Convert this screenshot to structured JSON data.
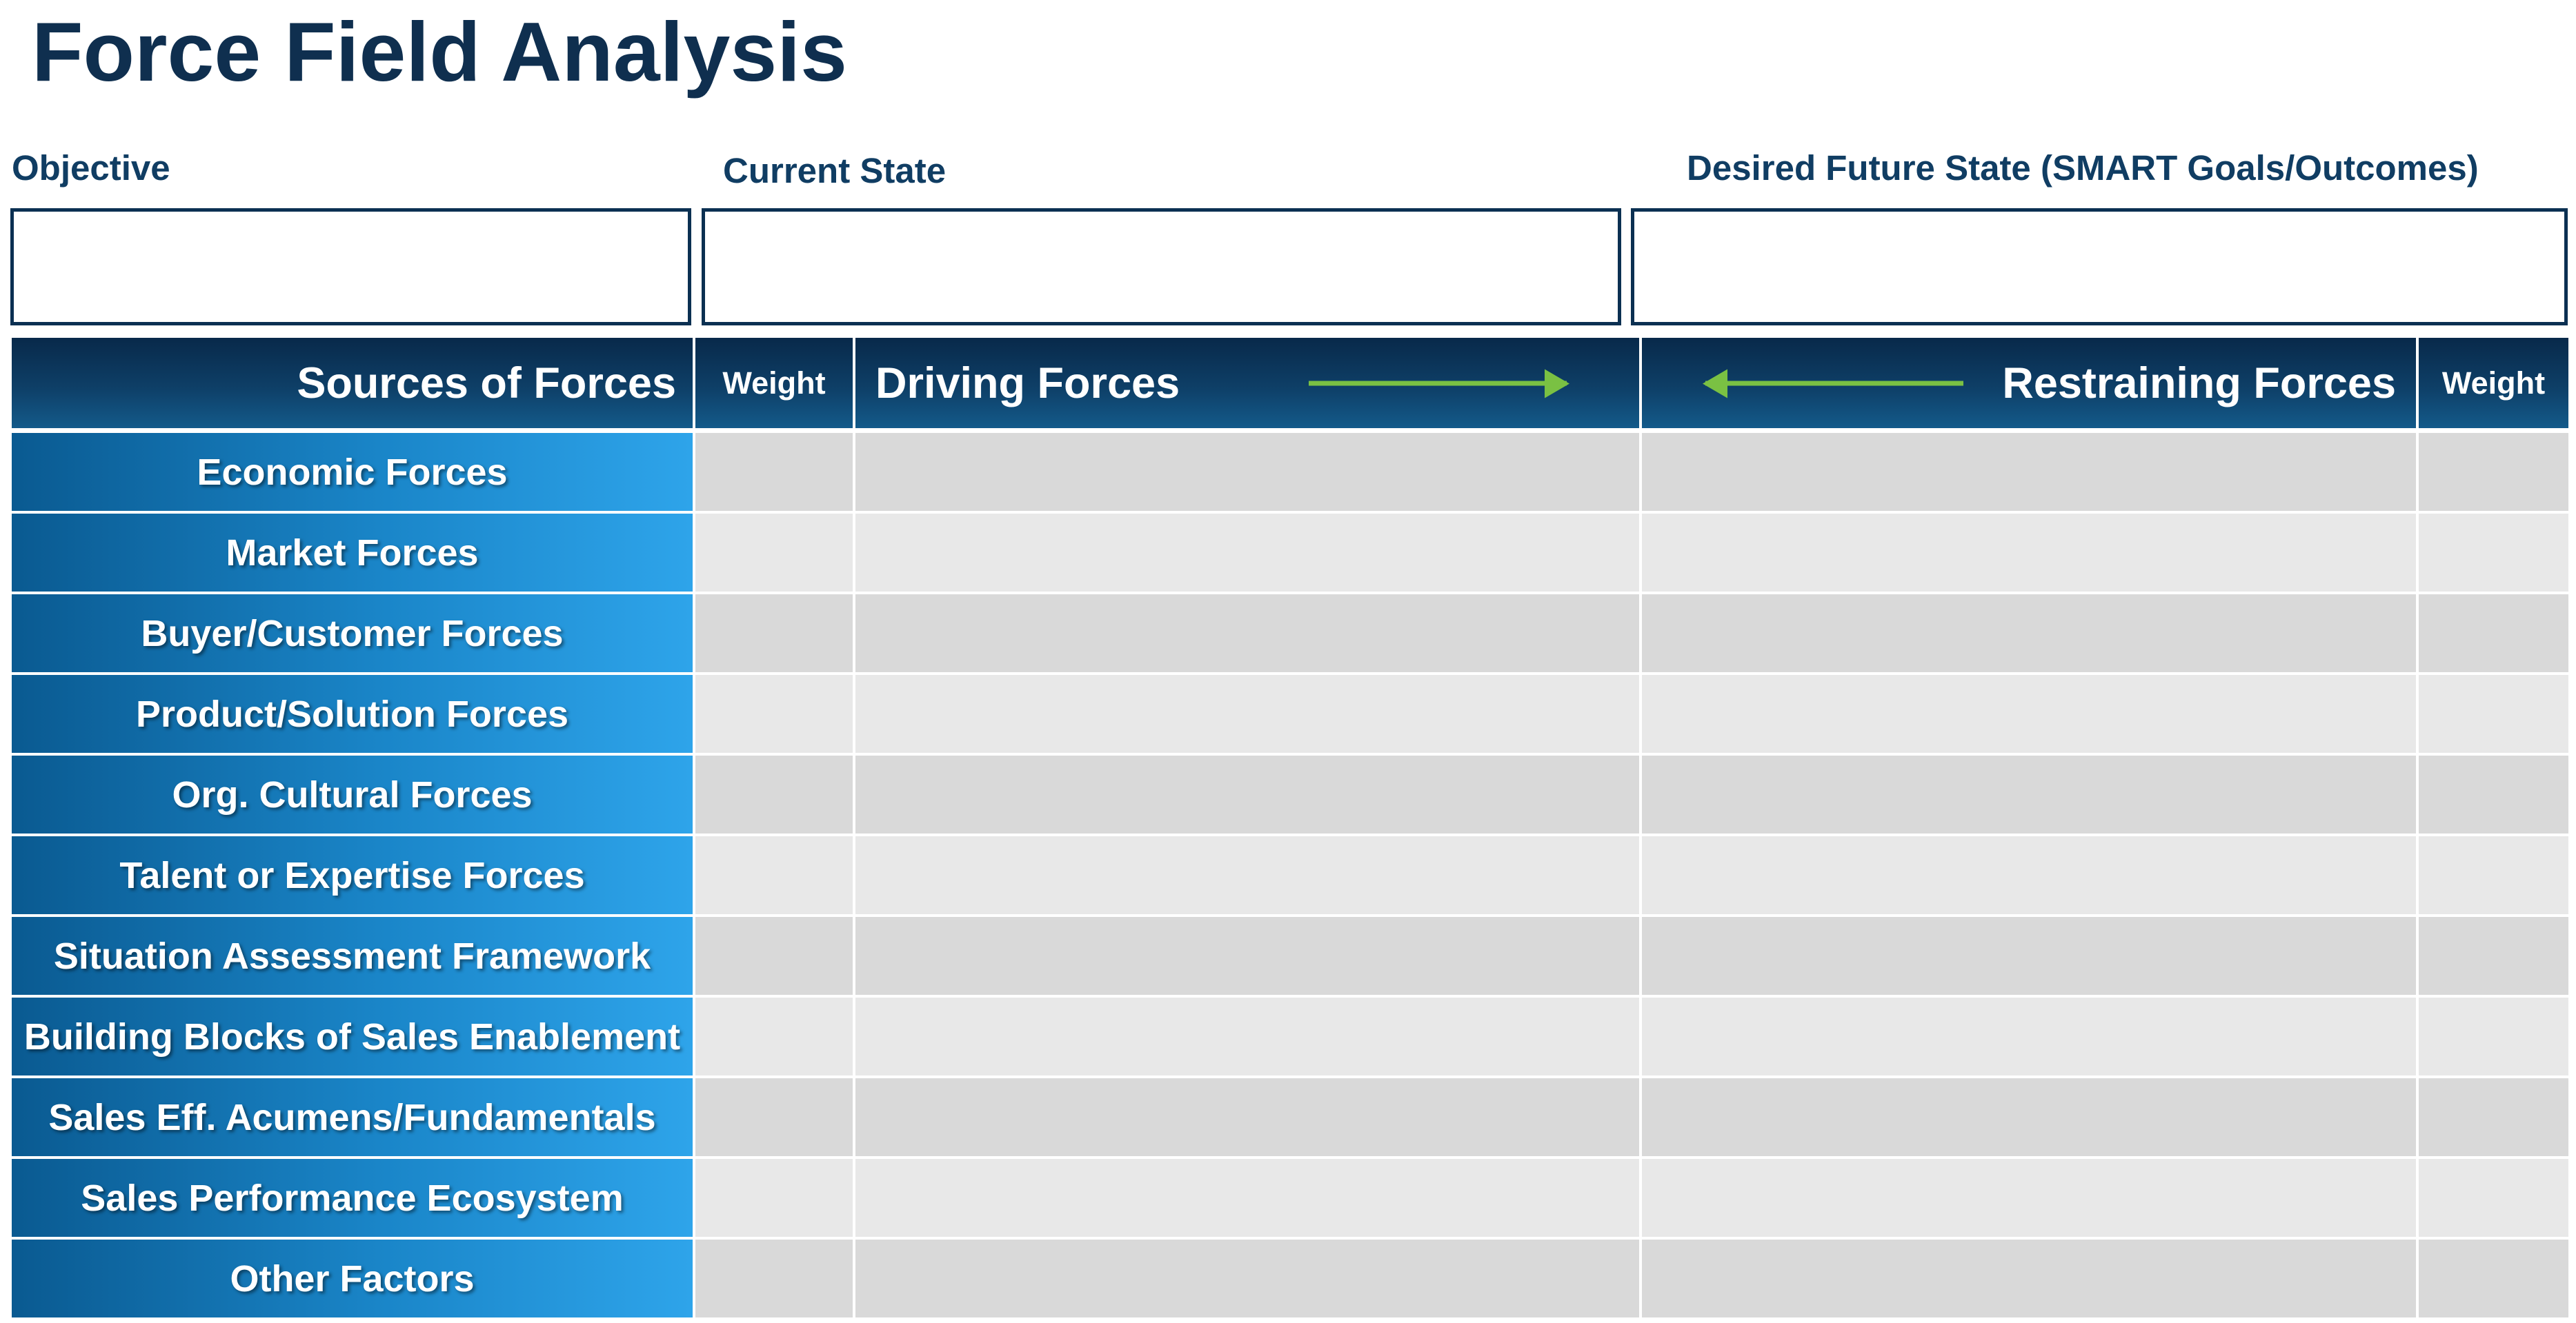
{
  "title": "Force Field Analysis",
  "fields": {
    "objective": {
      "label": "Objective",
      "value": ""
    },
    "current_state": {
      "label": "Current State",
      "value": ""
    },
    "desired_future_state": {
      "label": "Desired Future State (SMART Goals/Outcomes)",
      "value": ""
    }
  },
  "table": {
    "headers": {
      "sources": "Sources of Forces",
      "weight_left": "Weight",
      "driving": "Driving Forces",
      "restraining": "Restraining Forces",
      "weight_right": "Weight"
    },
    "rows": [
      {
        "source": "Economic Forces",
        "weight_left": "",
        "driving": "",
        "restraining": "",
        "weight_right": ""
      },
      {
        "source": "Market Forces",
        "weight_left": "",
        "driving": "",
        "restraining": "",
        "weight_right": ""
      },
      {
        "source": "Buyer/Customer Forces",
        "weight_left": "",
        "driving": "",
        "restraining": "",
        "weight_right": ""
      },
      {
        "source": "Product/Solution Forces",
        "weight_left": "",
        "driving": "",
        "restraining": "",
        "weight_right": ""
      },
      {
        "source": "Org. Cultural Forces",
        "weight_left": "",
        "driving": "",
        "restraining": "",
        "weight_right": ""
      },
      {
        "source": "Talent or Expertise Forces",
        "weight_left": "",
        "driving": "",
        "restraining": "",
        "weight_right": ""
      },
      {
        "source": "Situation Assessment Framework",
        "weight_left": "",
        "driving": "",
        "restraining": "",
        "weight_right": ""
      },
      {
        "source": "Building Blocks of Sales Enablement",
        "weight_left": "",
        "driving": "",
        "restraining": "",
        "weight_right": ""
      },
      {
        "source": "Sales Eff. Acumens/Fundamentals",
        "weight_left": "",
        "driving": "",
        "restraining": "",
        "weight_right": ""
      },
      {
        "source": "Sales Performance Ecosystem",
        "weight_left": "",
        "driving": "",
        "restraining": "",
        "weight_right": ""
      },
      {
        "source": "Other Factors",
        "weight_left": "",
        "driving": "",
        "restraining": "",
        "weight_right": ""
      }
    ]
  },
  "colors": {
    "title": "#0f2f4f",
    "header_dark": "#08294a",
    "source_gradient_start": "#0a5a91",
    "source_gradient_end": "#2ea4ea",
    "arrow": "#7ac143",
    "cell_grey_dark": "#d9d9d9",
    "cell_grey_light": "#e8e8e8"
  },
  "icons": {
    "driving_arrow": "arrow-right-icon",
    "restraining_arrow": "arrow-left-icon"
  }
}
